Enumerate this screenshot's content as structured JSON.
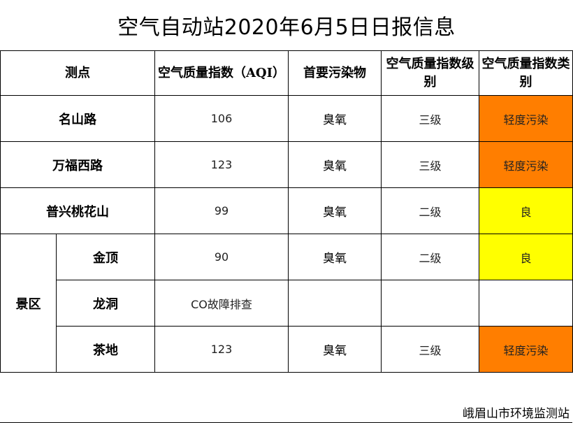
{
  "title": "空气自动站2020年6月5日日报信息",
  "headers": {
    "point": "测点",
    "aqi": "空气质量指数（AQI）",
    "pollutant": "首要污染物",
    "level": "空气质量指数级别",
    "category": "空气质量指数类别"
  },
  "rows": [
    {
      "name": "名山路",
      "aqi": "106",
      "pollutant": "臭氧",
      "level": "三级",
      "category": "轻度污染"
    },
    {
      "name": "万福西路",
      "aqi": "123",
      "pollutant": "臭氧",
      "level": "三级",
      "category": "轻度污染"
    },
    {
      "name": "普兴桃花山",
      "aqi": "99",
      "pollutant": "臭氧",
      "level": "二级",
      "category": "良"
    }
  ],
  "scenic": {
    "label": "景区",
    "rows": [
      {
        "name": "金顶",
        "aqi": "90",
        "pollutant": "臭氧",
        "level": "二级",
        "category": "良"
      },
      {
        "name": "龙洞",
        "aqi": "CO故障排查",
        "pollutant": "",
        "level": "",
        "category": ""
      },
      {
        "name": "茶地",
        "aqi": "123",
        "pollutant": "臭氧",
        "level": "三级",
        "category": "轻度污染"
      }
    ]
  },
  "colors": {
    "light_pollution": "#ff7e00",
    "good": "#ffff00"
  },
  "footer": {
    "station": "峨眉山市环境监测站"
  }
}
